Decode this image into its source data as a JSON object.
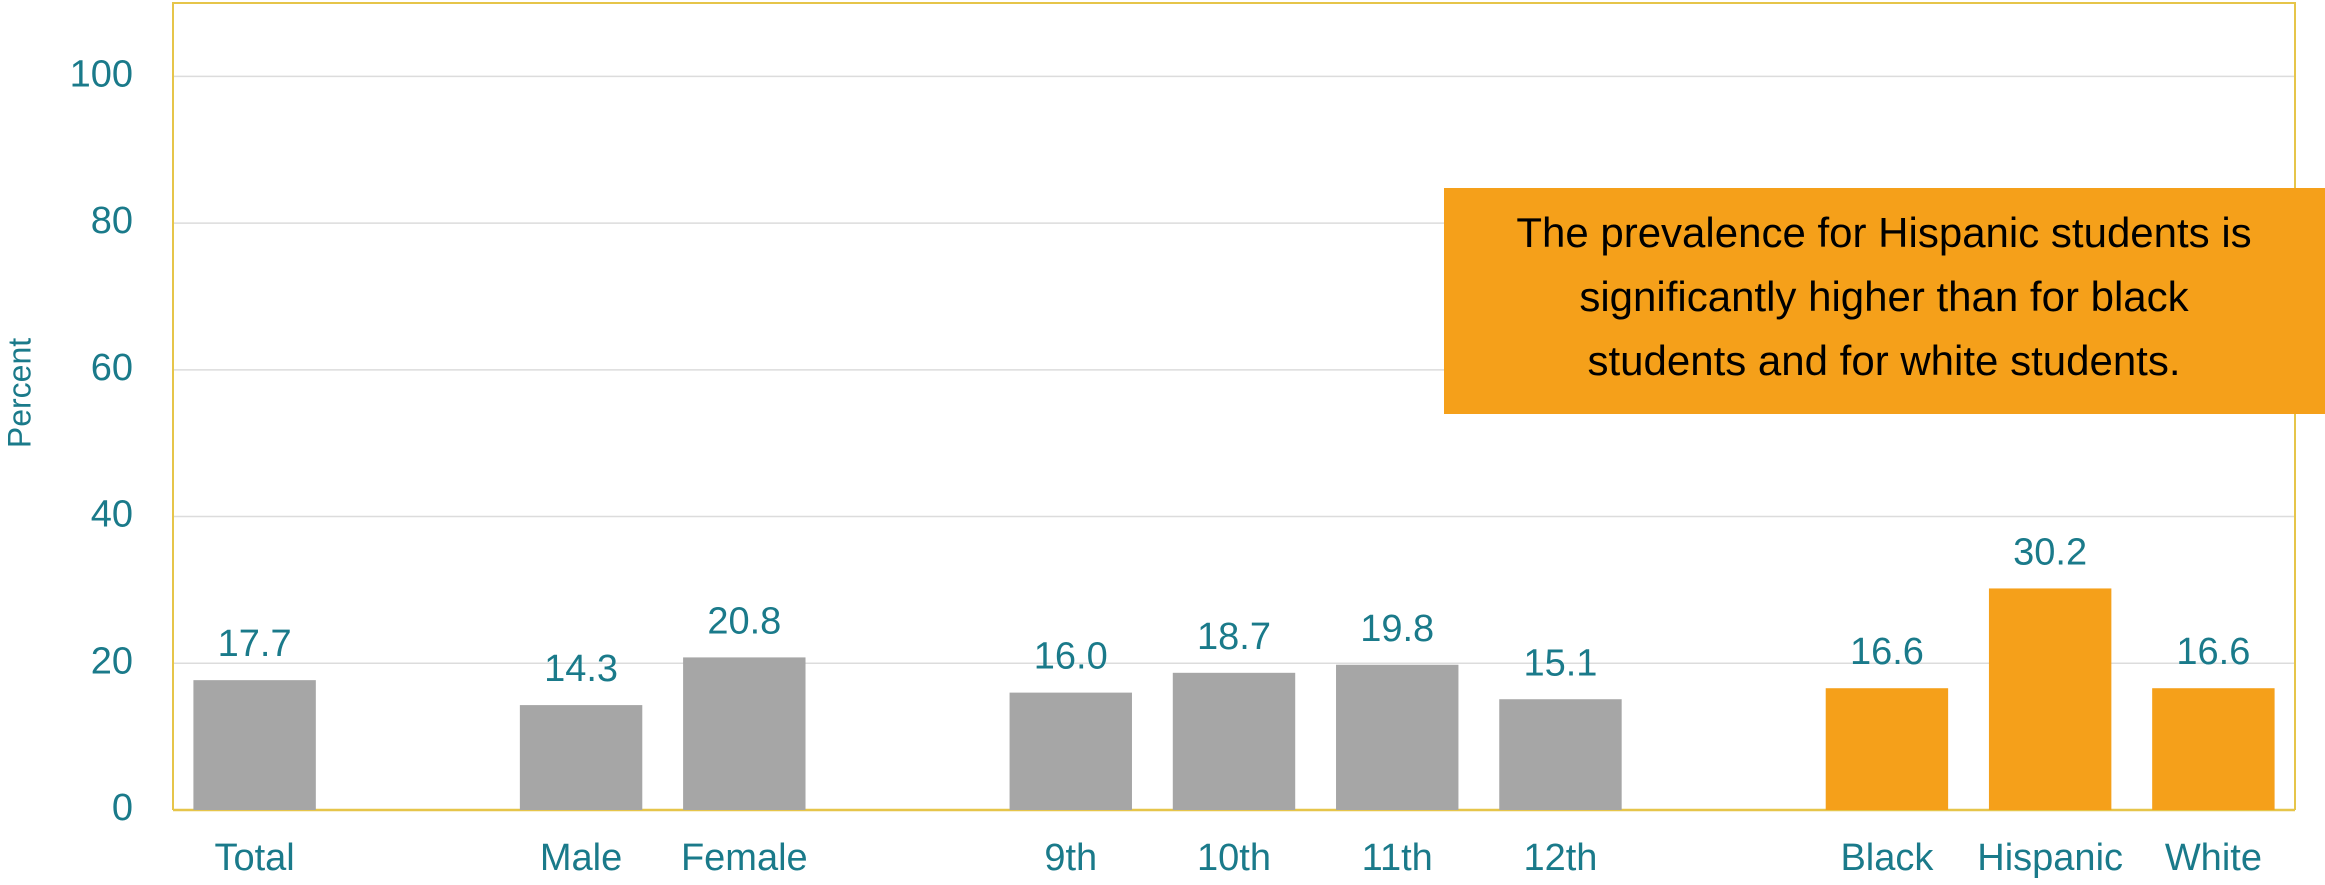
{
  "chart_data": {
    "type": "bar",
    "y_label": "Percent",
    "categories": [
      "Total",
      null,
      "Male",
      "Female",
      null,
      "9th",
      "10th",
      "11th",
      "12th",
      null,
      "Black",
      "Hispanic",
      "White"
    ],
    "values": [
      17.7,
      null,
      14.3,
      20.8,
      null,
      16.0,
      18.7,
      19.8,
      15.1,
      null,
      16.6,
      30.2,
      16.6
    ],
    "value_labels": [
      "17.7",
      null,
      "14.3",
      "20.8",
      null,
      "16.0",
      "18.7",
      "19.8",
      "15.1",
      null,
      "16.6",
      "30.2",
      "16.6"
    ],
    "colors": [
      "#a6a6a6",
      null,
      "#a6a6a6",
      "#a6a6a6",
      null,
      "#a6a6a6",
      "#a6a6a6",
      "#a6a6a6",
      "#a6a6a6",
      null,
      "#f5a01a",
      "#f5a01a",
      "#f5a01a"
    ],
    "ylim": [
      0,
      110
    ],
    "yticks": [
      0,
      20,
      40,
      60,
      80,
      100
    ],
    "grid": true,
    "annotation": [
      "The prevalence for Hispanic students is",
      "significantly higher than for black",
      "students and for white students."
    ]
  }
}
